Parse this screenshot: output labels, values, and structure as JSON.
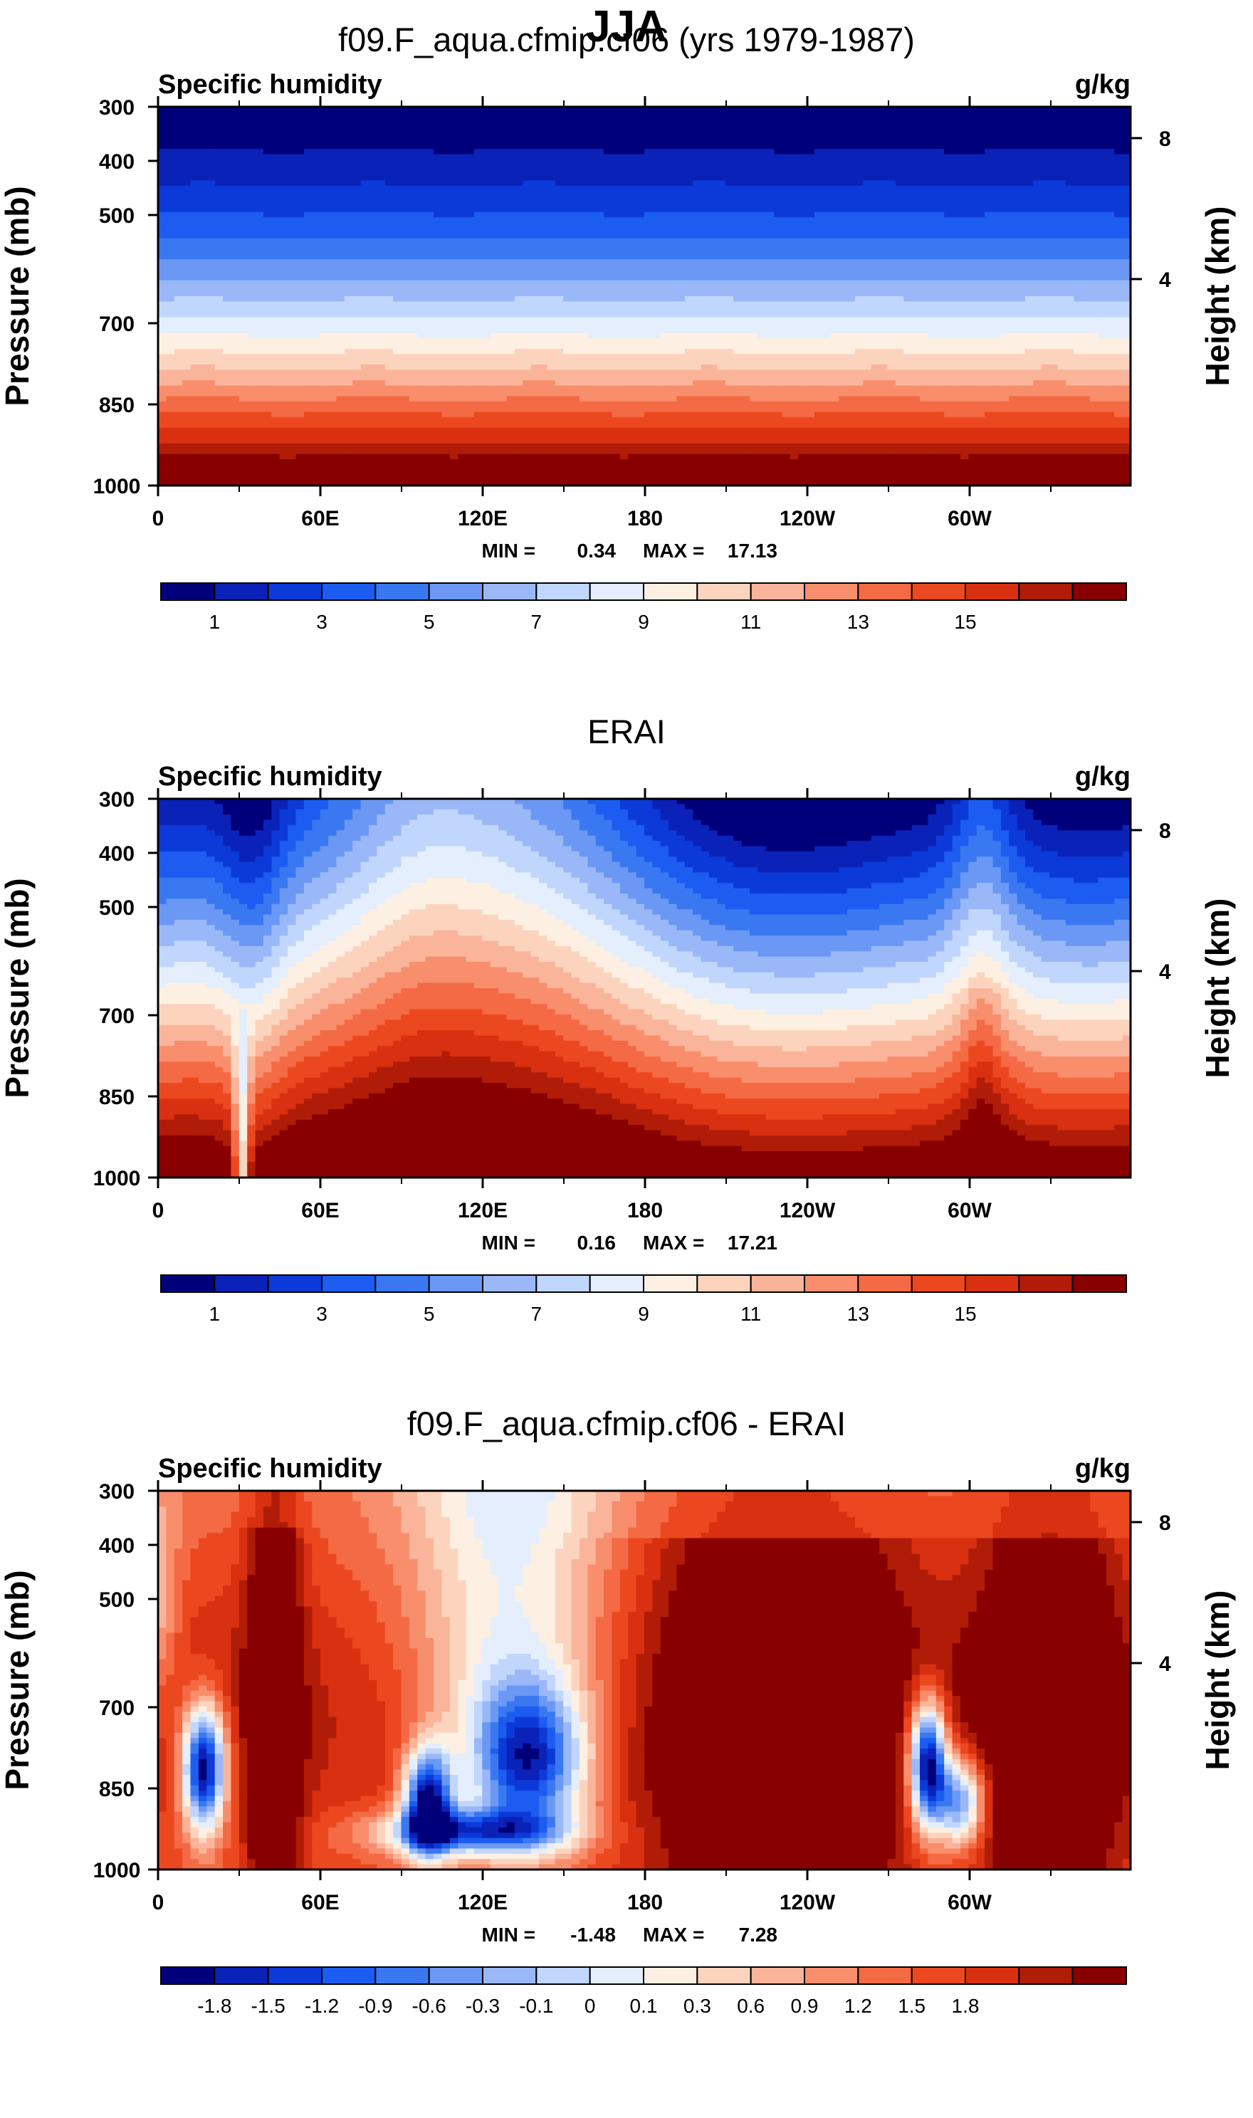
{
  "page_title": "JJA",
  "colors": {
    "full": [
      "#00007a",
      "#0a22b8",
      "#0c3ad8",
      "#1c5cf0",
      "#3a78f2",
      "#6a98f4",
      "#9ab8f8",
      "#c0d6fc",
      "#e4eefc",
      "#fdf0e2",
      "#fcd4be",
      "#fab49a",
      "#f88e6c",
      "#f46a44",
      "#ec4820",
      "#d83010",
      "#b01c08",
      "#880000"
    ],
    "diff": [
      "#00007a",
      "#0a22b8",
      "#0c3ad8",
      "#1c5cf0",
      "#3a78f2",
      "#6a98f4",
      "#9ab8f8",
      "#c0d6fc",
      "#e4eefc",
      "#fdf0e2",
      "#fcd4be",
      "#fab49a",
      "#f88e6c",
      "#f46a44",
      "#ec4820",
      "#d83010",
      "#b01c08",
      "#880000"
    ]
  },
  "chart_data": [
    {
      "type": "heatmap",
      "title": "f09.F_aqua.cfmip.cf06 (yrs 1979-1987)",
      "left_label": "Specific humidity",
      "right_label": "g/kg",
      "ylabel": "Pressure (mb)",
      "y2label": "Height (km)",
      "x_ticks": [
        "0",
        "60E",
        "120E",
        "180",
        "120W",
        "60W"
      ],
      "y_ticks": [
        "300",
        "400",
        "500",
        "700",
        "850",
        "1000"
      ],
      "y2_ticks": [
        "8",
        "4"
      ],
      "min_label": "MIN =",
      "min_value": "0.34",
      "max_label": "MAX =",
      "max_value": "17.13",
      "colorbar_labels": [
        "1",
        "3",
        "5",
        "7",
        "9",
        "11",
        "13",
        "15"
      ],
      "field": "zonal_bands"
    },
    {
      "type": "heatmap",
      "title": "ERAI",
      "left_label": "Specific humidity",
      "right_label": "g/kg",
      "ylabel": "Pressure (mb)",
      "y2label": "Height (km)",
      "x_ticks": [
        "0",
        "60E",
        "120E",
        "180",
        "120W",
        "60W"
      ],
      "y_ticks": [
        "300",
        "400",
        "500",
        "700",
        "850",
        "1000"
      ],
      "y2_ticks": [
        "8",
        "4"
      ],
      "min_label": "MIN =",
      "min_value": "0.16",
      "max_label": "MAX =",
      "max_value": "17.21",
      "colorbar_labels": [
        "1",
        "3",
        "5",
        "7",
        "9",
        "11",
        "13",
        "15"
      ],
      "field": "observed"
    },
    {
      "type": "heatmap",
      "title": "f09.F_aqua.cfmip.cf06 - ERAI",
      "left_label": "Specific humidity",
      "right_label": "g/kg",
      "ylabel": "Pressure (mb)",
      "y2label": "Height (km)",
      "x_ticks": [
        "0",
        "60E",
        "120E",
        "180",
        "120W",
        "60W"
      ],
      "y_ticks": [
        "300",
        "400",
        "500",
        "700",
        "850",
        "1000"
      ],
      "y2_ticks": [
        "8",
        "4"
      ],
      "min_label": "MIN =",
      "min_value": "-1.48",
      "max_label": "MAX =",
      "max_value": "7.28",
      "colorbar_labels": [
        "-1.8",
        "-1.5",
        "-1.2",
        "-0.9",
        "-0.6",
        "-0.3",
        "-0.1",
        "0",
        "0.1",
        "0.3",
        "0.6",
        "0.9",
        "1.2",
        "1.5",
        "1.8"
      ],
      "field": "difference"
    }
  ]
}
